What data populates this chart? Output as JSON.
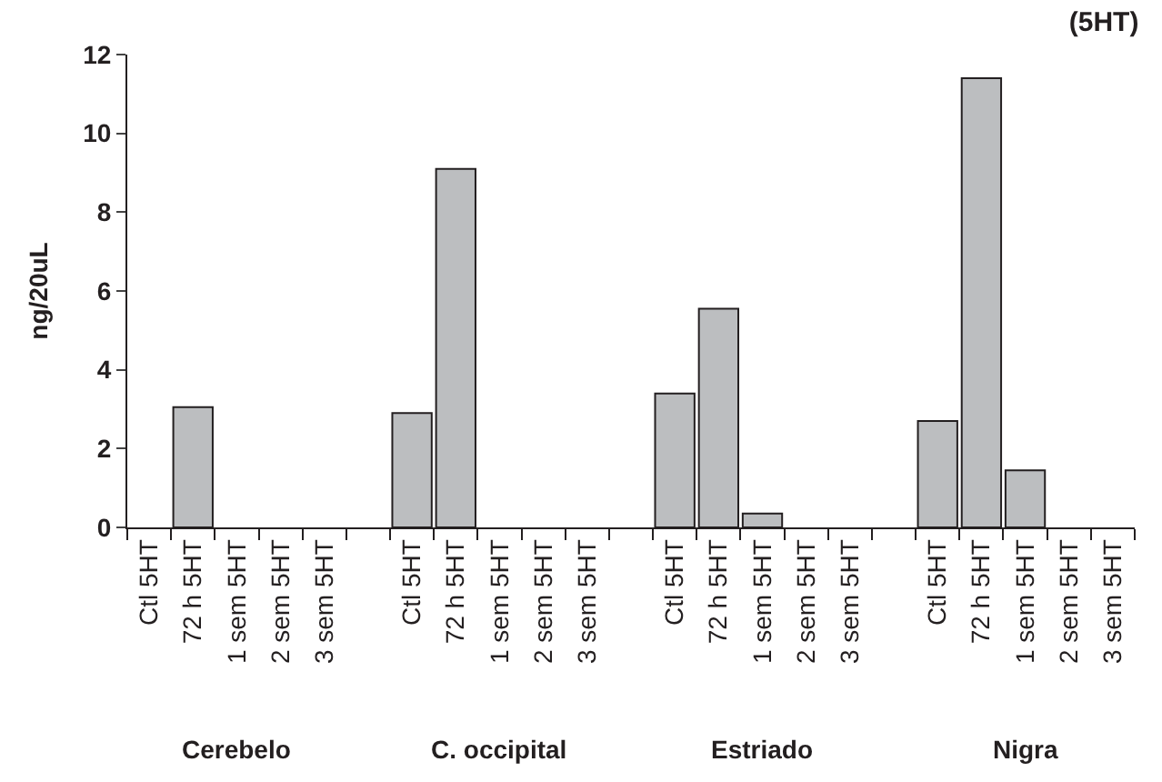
{
  "chart_data": {
    "type": "bar",
    "title": "(5HT)",
    "ylabel": "ng/20uL",
    "categories": [
      "Ctl 5HT",
      "72 h 5HT",
      "1 sem 5HT",
      "2 sem 5HT",
      "3 sem 5HT",
      null,
      "Ctl 5HT",
      "72 h 5HT",
      "1 sem 5HT",
      "2 sem 5HT",
      "3 sem 5HT",
      null,
      "Ctl 5HT",
      "72 h 5HT",
      "1 sem 5HT",
      "2 sem 5HT",
      "3 sem 5HT",
      null,
      "Ctl 5HT",
      "72 h 5HT",
      "1 sem 5HT",
      "2 sem 5HT",
      "3 sem 5HT"
    ],
    "values": [
      null,
      3.05,
      null,
      null,
      null,
      null,
      2.9,
      9.1,
      null,
      null,
      null,
      null,
      3.4,
      5.55,
      0.35,
      null,
      null,
      null,
      2.7,
      11.4,
      1.45,
      null,
      null
    ],
    "color": "#bcbec0",
    "ylim": [
      0,
      12
    ],
    "yticks": [
      0,
      2,
      4,
      6,
      8,
      10,
      12
    ],
    "annotations": [
      "Cerebelo",
      "C. occipital",
      "Estriado",
      "Nigra"
    ],
    "legend": false
  }
}
